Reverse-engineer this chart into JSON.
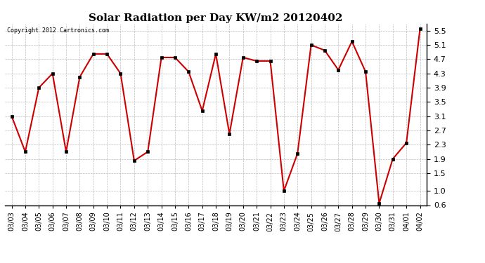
{
  "title": "Solar Radiation per Day KW/m2 20120402",
  "copyright_text": "Copyright 2012 Cartronics.com",
  "dates": [
    "03/03",
    "03/04",
    "03/05",
    "03/06",
    "03/07",
    "03/08",
    "03/09",
    "03/10",
    "03/11",
    "03/12",
    "03/13",
    "03/14",
    "03/15",
    "03/16",
    "03/17",
    "03/18",
    "03/19",
    "03/20",
    "03/21",
    "03/22",
    "03/23",
    "03/24",
    "03/25",
    "03/26",
    "03/27",
    "03/28",
    "03/29",
    "03/30",
    "03/31",
    "04/01",
    "04/02"
  ],
  "values": [
    3.1,
    2.1,
    3.9,
    4.3,
    2.1,
    4.2,
    4.85,
    4.85,
    4.3,
    1.85,
    2.1,
    4.75,
    4.75,
    4.35,
    3.25,
    4.85,
    2.6,
    4.75,
    4.65,
    4.65,
    1.0,
    2.05,
    5.1,
    4.95,
    4.4,
    5.2,
    4.35,
    0.65,
    1.9,
    2.35,
    5.55
  ],
  "line_color": "#cc0000",
  "marker": "s",
  "marker_size": 2.5,
  "ylim": [
    0.6,
    5.7
  ],
  "yticks": [
    0.6,
    1.0,
    1.5,
    1.9,
    2.3,
    2.7,
    3.1,
    3.5,
    3.9,
    4.3,
    4.7,
    5.1,
    5.5
  ],
  "bg_color": "#ffffff",
  "grid_color": "#bbbbbb",
  "title_fontsize": 11,
  "copyright_fontsize": 6,
  "tick_fontsize": 7,
  "ytick_fontsize": 8
}
